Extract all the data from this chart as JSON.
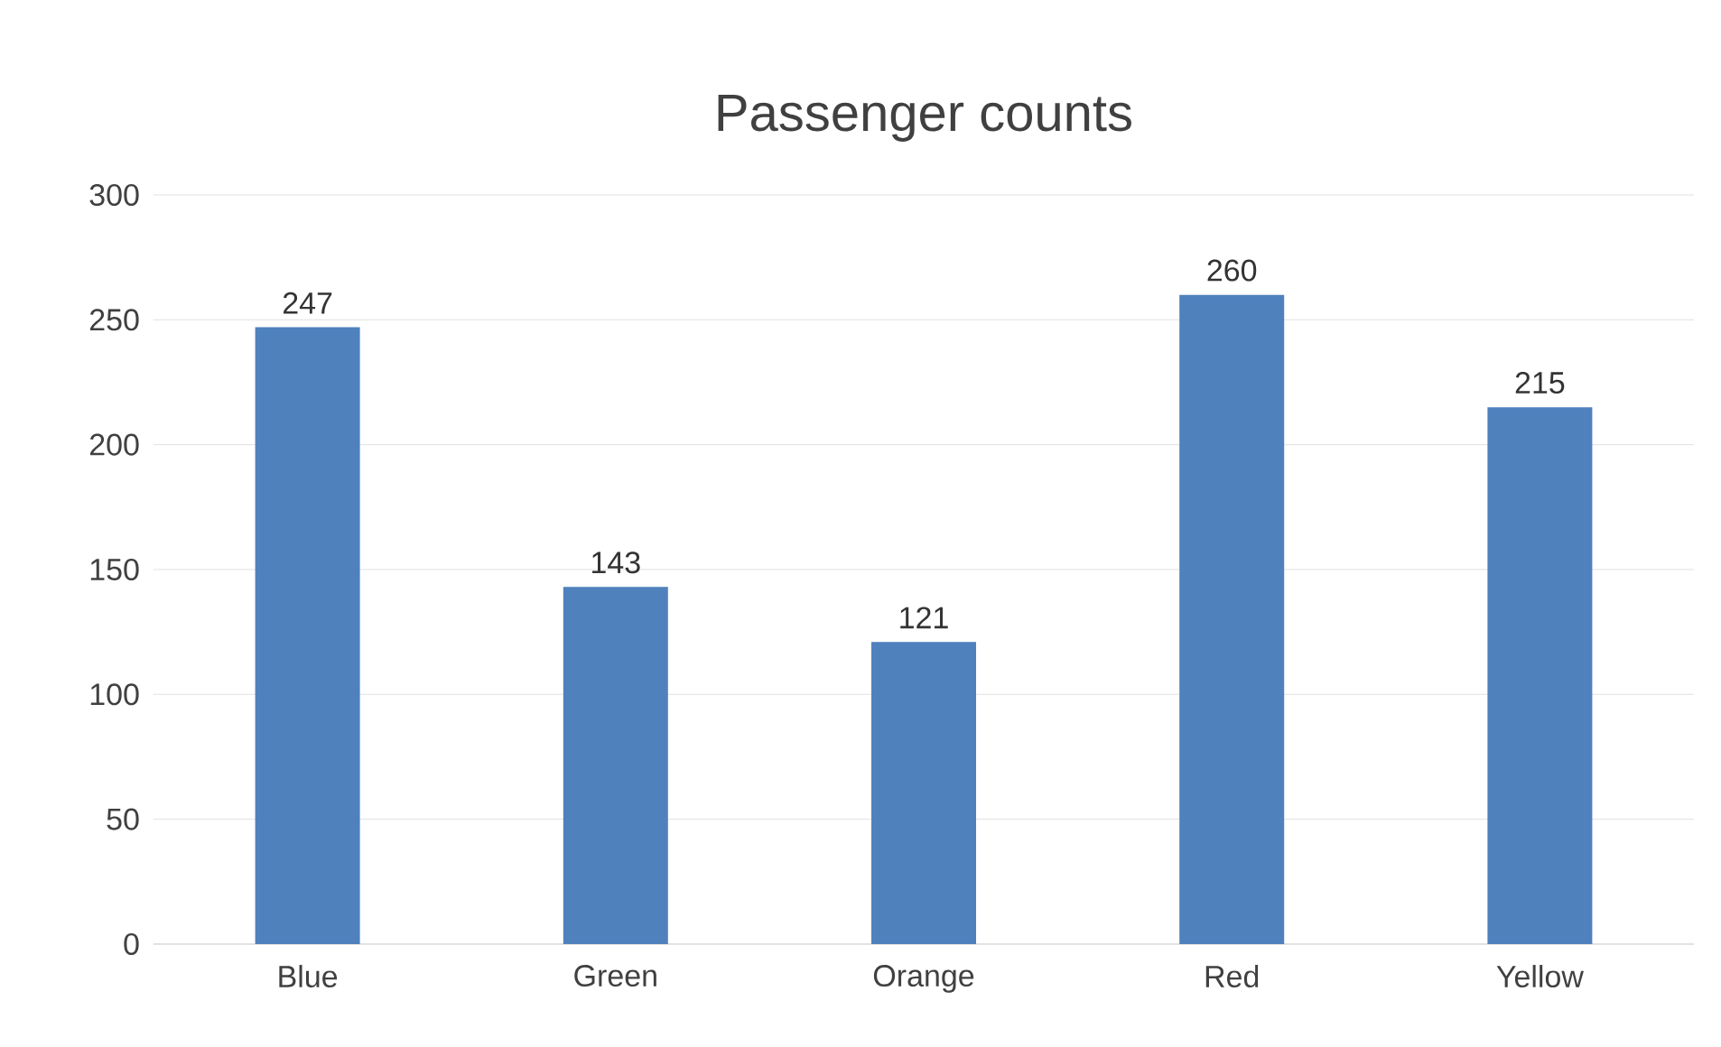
{
  "chart_data": {
    "type": "bar",
    "title": "Passenger counts",
    "categories": [
      "Blue",
      "Green",
      "Orange",
      "Red",
      "Yellow"
    ],
    "values": [
      247,
      143,
      121,
      260,
      215
    ],
    "color": "#4f81bd",
    "ylim": [
      0,
      300
    ],
    "yticks": [
      0,
      50,
      100,
      150,
      200,
      250,
      300
    ],
    "grid": "y",
    "data_labels": true
  }
}
